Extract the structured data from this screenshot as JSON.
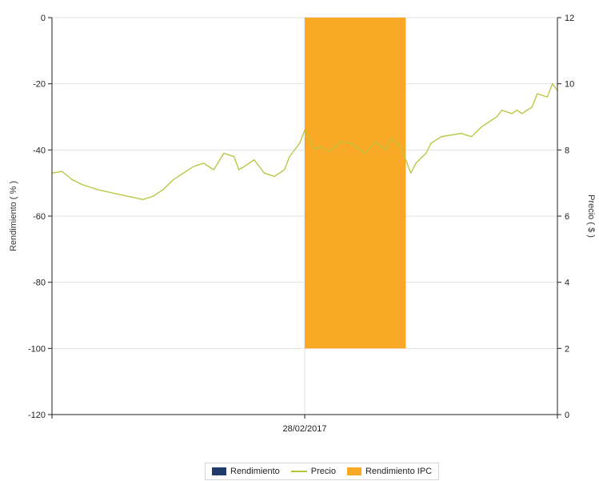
{
  "chart_data": {
    "type": "line",
    "x_tick_labels": [
      "28/02/2017"
    ],
    "left_axis": {
      "label": "Rendimiento  ( % )",
      "ylim": [
        -120,
        0
      ],
      "ticks": [
        0,
        -20,
        -40,
        -60,
        -80,
        -100,
        -120
      ]
    },
    "right_axis": {
      "label": "Precio  ( $ )",
      "ylim": [
        0,
        12
      ],
      "ticks": [
        12,
        10,
        8,
        6,
        4,
        2,
        0
      ]
    },
    "grid": "horizontal",
    "legend_position": "bottom-center",
    "series": [
      {
        "name": "Rendimiento",
        "type": "bar",
        "axis": "left",
        "color": "#1f3a6b",
        "values": []
      },
      {
        "name": "Precio",
        "type": "line",
        "axis": "right",
        "color": "#b8c43a",
        "points": [
          [
            0.0,
            7.3
          ],
          [
            0.02,
            7.35
          ],
          [
            0.04,
            7.1
          ],
          [
            0.06,
            6.95
          ],
          [
            0.09,
            6.8
          ],
          [
            0.12,
            6.7
          ],
          [
            0.15,
            6.6
          ],
          [
            0.18,
            6.5
          ],
          [
            0.2,
            6.6
          ],
          [
            0.22,
            6.8
          ],
          [
            0.24,
            7.1
          ],
          [
            0.26,
            7.3
          ],
          [
            0.28,
            7.5
          ],
          [
            0.3,
            7.6
          ],
          [
            0.32,
            7.4
          ],
          [
            0.34,
            7.9
          ],
          [
            0.36,
            7.8
          ],
          [
            0.37,
            7.4
          ],
          [
            0.39,
            7.6
          ],
          [
            0.4,
            7.7
          ],
          [
            0.41,
            7.5
          ],
          [
            0.42,
            7.3
          ],
          [
            0.44,
            7.2
          ],
          [
            0.46,
            7.4
          ],
          [
            0.47,
            7.8
          ],
          [
            0.49,
            8.2
          ],
          [
            0.5,
            8.6
          ],
          [
            0.51,
            8.3
          ],
          [
            0.52,
            8.0
          ],
          [
            0.53,
            8.1
          ],
          [
            0.55,
            7.95
          ],
          [
            0.57,
            8.25
          ],
          [
            0.59,
            8.2
          ],
          [
            0.61,
            8.0
          ],
          [
            0.62,
            7.9
          ],
          [
            0.64,
            8.25
          ],
          [
            0.66,
            8.0
          ],
          [
            0.67,
            8.35
          ],
          [
            0.69,
            8.1
          ],
          [
            0.7,
            7.7
          ],
          [
            0.71,
            7.3
          ],
          [
            0.72,
            7.6
          ],
          [
            0.74,
            7.9
          ],
          [
            0.75,
            8.2
          ],
          [
            0.77,
            8.4
          ],
          [
            0.79,
            8.45
          ],
          [
            0.81,
            8.5
          ],
          [
            0.83,
            8.4
          ],
          [
            0.85,
            8.7
          ],
          [
            0.87,
            8.9
          ],
          [
            0.88,
            9.0
          ],
          [
            0.89,
            9.2
          ],
          [
            0.91,
            9.1
          ],
          [
            0.92,
            9.2
          ],
          [
            0.93,
            9.1
          ],
          [
            0.95,
            9.3
          ],
          [
            0.96,
            9.7
          ],
          [
            0.98,
            9.6
          ],
          [
            0.99,
            10.0
          ],
          [
            1.0,
            9.8
          ]
        ]
      },
      {
        "name": "Rendimiento IPC",
        "type": "bar",
        "axis": "left",
        "color": "#f9a825",
        "x_range": [
          0.5,
          0.7
        ],
        "range": [
          0,
          -100
        ]
      }
    ]
  }
}
